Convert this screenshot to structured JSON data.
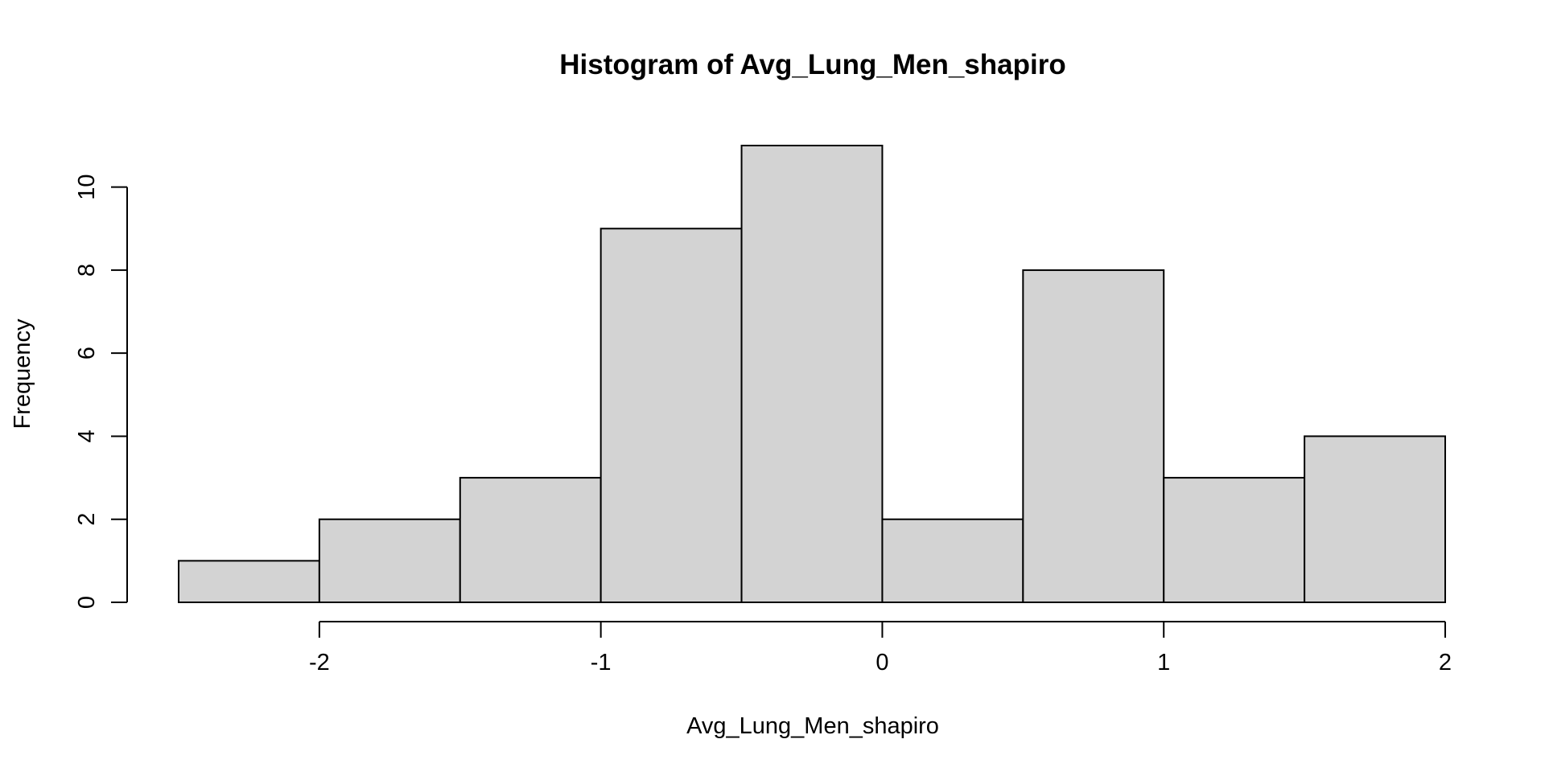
{
  "chart_data": {
    "type": "bar",
    "title": "Histogram of Avg_Lung_Men_shapiro",
    "xlabel": "Avg_Lung_Men_shapiro",
    "ylabel": "Frequency",
    "bin_edges": [
      -2.5,
      -2.0,
      -1.5,
      -1.0,
      -0.5,
      0.0,
      0.5,
      1.0,
      1.5,
      2.0
    ],
    "values": [
      1,
      2,
      3,
      9,
      11,
      2,
      8,
      3,
      4
    ],
    "xlim": [
      -2.5,
      2.0
    ],
    "ylim": [
      0,
      11
    ],
    "x_ticks": [
      -2,
      -1,
      0,
      1,
      2
    ],
    "x_tick_labels": [
      "-2",
      "-1",
      "0",
      "1",
      "2"
    ],
    "y_ticks": [
      0,
      2,
      4,
      6,
      8,
      10
    ],
    "y_tick_labels": [
      "0",
      "2",
      "4",
      "6",
      "8",
      "10"
    ],
    "bar_color": "#d3d3d3",
    "grid": false,
    "legend": "none"
  }
}
